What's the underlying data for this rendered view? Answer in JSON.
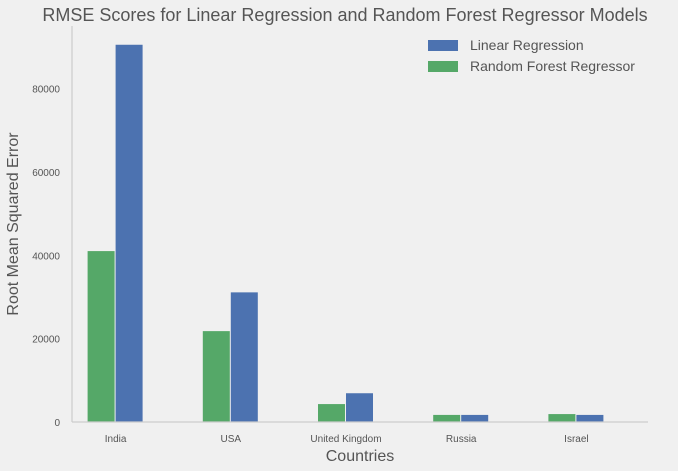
{
  "chart_data": {
    "type": "bar",
    "title": "RMSE Scores for Linear Regression and Random Forest Regressor Models",
    "xlabel": "Countries",
    "ylabel": "Root Mean Squared Error",
    "categories": [
      "India",
      "USA",
      "United Kingdom",
      "Russia",
      "Israel"
    ],
    "series": [
      {
        "name": "Random Forest Regressor",
        "color": "#55a868",
        "values": [
          41000,
          21800,
          4300,
          1700,
          1900
        ]
      },
      {
        "name": "Linear Regression",
        "color": "#4c72b0",
        "values": [
          90500,
          31100,
          6900,
          1700,
          1700
        ]
      }
    ],
    "legend_order": [
      1,
      0
    ],
    "yticks": [
      0,
      20000,
      40000,
      60000,
      80000
    ],
    "ylim": [
      0,
      95000
    ],
    "grid": false,
    "legend_position": "top-right"
  }
}
